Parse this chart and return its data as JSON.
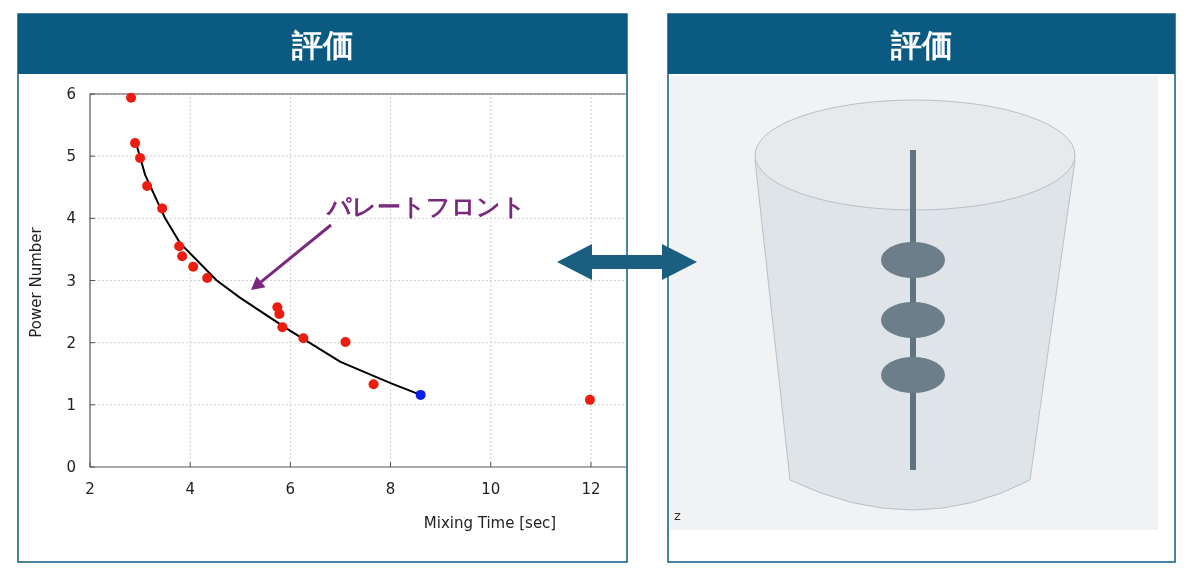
{
  "chart_data": [
    {
      "type": "scatter",
      "title": "評価",
      "xlabel": "Mixing Time [sec]",
      "ylabel": "Power Number",
      "xlim": [
        2,
        12.7
      ],
      "xticks": [
        2,
        4,
        6,
        8,
        10,
        12
      ],
      "ylim": [
        0,
        6
      ],
      "yticks": [
        0,
        1,
        2,
        3,
        4,
        5,
        6
      ],
      "grid": true,
      "marker": "circle",
      "series": [
        {
          "type": "scatter",
          "color": "#ee1c0e",
          "x": [
            2.82,
            2.9,
            3.0,
            3.14,
            3.44,
            3.78,
            3.84,
            4.06,
            4.34,
            5.74,
            5.78,
            5.84,
            6.26,
            7.1,
            7.66,
            11.98
          ],
          "values": [
            5.94,
            5.21,
            4.97,
            4.52,
            4.16,
            3.55,
            3.39,
            3.22,
            3.04,
            2.57,
            2.46,
            2.25,
            2.07,
            2.01,
            1.33,
            1.08
          ]
        },
        {
          "type": "scatter",
          "color": "#0a1ee6",
          "x": [
            8.6
          ],
          "values": [
            1.16
          ]
        },
        {
          "type": "line",
          "color": "#000000",
          "marker": "none",
          "x": [
            2.94,
            3.1,
            3.5,
            3.8,
            4.53,
            5,
            6,
            7,
            8,
            8.6
          ],
          "values": [
            5.15,
            4.7,
            4.0,
            3.6,
            3.0,
            2.72,
            2.19,
            1.69,
            1.35,
            1.16
          ]
        }
      ],
      "annotations": [
        "パレートフロント"
      ]
    },
    {
      "type": "other",
      "title": "評価",
      "annotations": [
        "z"
      ]
    }
  ]
}
